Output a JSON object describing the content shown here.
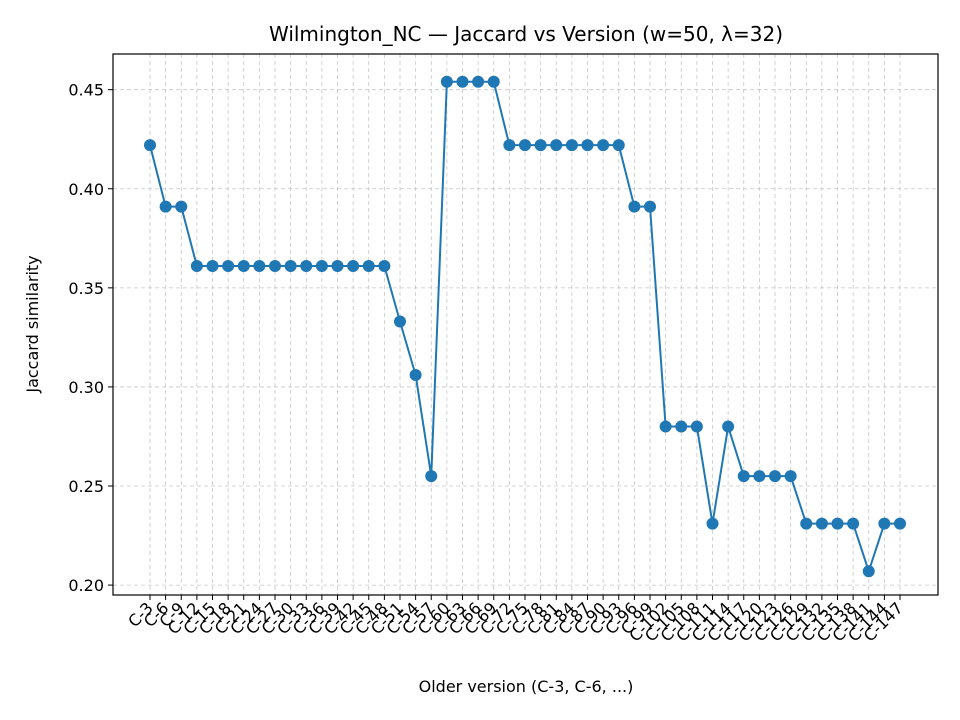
{
  "chart_data": {
    "type": "line",
    "title": "Wilmington_NC — Jaccard vs Version (w=50, λ=32)",
    "xlabel": "Older version (C-3, C-6, ...)",
    "ylabel": "Jaccard similarity",
    "ylim": [
      0.195,
      0.468
    ],
    "yticks": [
      0.2,
      0.25,
      0.3,
      0.35,
      0.4,
      0.45
    ],
    "yticklabels": [
      "0.20",
      "0.25",
      "0.30",
      "0.35",
      "0.40",
      "0.45"
    ],
    "grid": true,
    "color": "#1f77b4",
    "categories": [
      "C-3",
      "C-6",
      "C-9",
      "C-12",
      "C-15",
      "C-18",
      "C-21",
      "C-24",
      "C-27",
      "C-30",
      "C-33",
      "C-36",
      "C-39",
      "C-42",
      "C-45",
      "C-48",
      "C-51",
      "C-54",
      "C-57",
      "C-60",
      "C-63",
      "C-66",
      "C-69",
      "C-72",
      "C-75",
      "C-78",
      "C-81",
      "C-84",
      "C-87",
      "C-90",
      "C-93",
      "C-96",
      "C-99",
      "C-102",
      "C-105",
      "C-108",
      "C-111",
      "C-114",
      "C-117",
      "C-120",
      "C-123",
      "C-126",
      "C-129",
      "C-132",
      "C-135",
      "C-138",
      "C-141",
      "C-144",
      "C-147"
    ],
    "values": [
      0.422,
      0.391,
      0.391,
      0.361,
      0.361,
      0.361,
      0.361,
      0.361,
      0.361,
      0.361,
      0.361,
      0.361,
      0.361,
      0.361,
      0.361,
      0.361,
      0.333,
      0.306,
      0.255,
      0.454,
      0.454,
      0.454,
      0.454,
      0.422,
      0.422,
      0.422,
      0.422,
      0.422,
      0.422,
      0.422,
      0.422,
      0.391,
      0.391,
      0.28,
      0.28,
      0.28,
      0.231,
      0.28,
      0.255,
      0.255,
      0.255,
      0.255,
      0.231,
      0.231,
      0.231,
      0.231,
      0.207,
      0.231,
      0.231
    ]
  }
}
